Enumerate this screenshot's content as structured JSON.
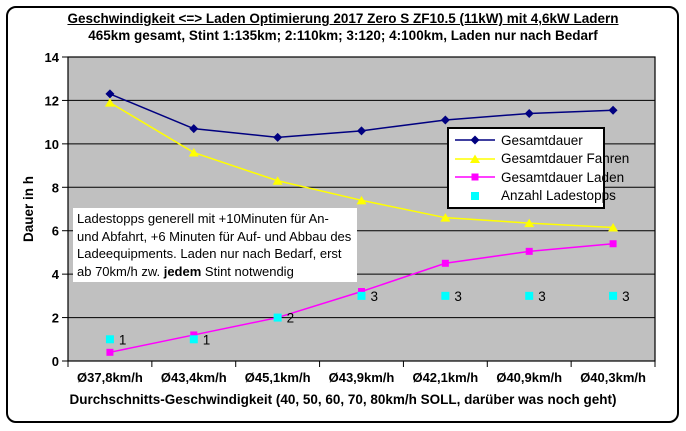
{
  "title": "Geschwindigkeit <=> Laden Optimierung 2017 Zero S ZF10.5 (11kW) mit 4,6kW Ladern",
  "subtitle": "465km gesamt, Stint 1:135km; 2:110km; 3:120; 4:100km, Laden nur nach Bedarf",
  "annotation": {
    "text_before": "Ladestopps generell mit +10Minuten für An- und Abfahrt, +6 Minuten für Auf- und Abbau des Ladeequipments. Laden nur nach Bedarf, erst ab 70km/h zw. ",
    "bold_word": "jedem",
    "text_after": " Stint notwendig"
  },
  "chart_data": {
    "type": "line",
    "title": "Geschwindigkeit <=> Laden Optimierung 2017 Zero S ZF10.5 (11kW) mit 4,6kW Ladern",
    "subtitle": "465km gesamt, Stint 1:135km; 2:110km; 3:120; 4:100km, Laden nur nach Bedarf",
    "categories": [
      "Ø37,8km/h",
      "Ø43,4km/h",
      "Ø45,1km/h",
      "Ø43,9km/h",
      "Ø42,1km/h",
      "Ø40,9km/h",
      "Ø40,3km/h"
    ],
    "series": [
      {
        "name": "Gesamtdauer",
        "color": "#000080",
        "marker": "diamond",
        "line": true,
        "values": [
          12.3,
          10.7,
          10.3,
          10.6,
          11.1,
          11.4,
          11.55
        ]
      },
      {
        "name": "Gesamtdauer Fahren",
        "color": "#FFFF00",
        "marker": "triangle",
        "line": true,
        "values": [
          11.9,
          9.6,
          8.3,
          7.4,
          6.6,
          6.35,
          6.15
        ]
      },
      {
        "name": "Gesamtdauer Laden",
        "color": "#FF00FF",
        "marker": "square",
        "line": true,
        "values": [
          0.4,
          1.2,
          2.0,
          3.2,
          4.5,
          5.05,
          5.4
        ]
      },
      {
        "name": "Anzahl Ladestopps",
        "color": "#00FFFF",
        "marker": "square",
        "line": false,
        "values": [
          1,
          1,
          2,
          3,
          3,
          3,
          3
        ],
        "data_labels": [
          "1",
          "1",
          "2",
          "3",
          "3",
          "3",
          "3"
        ]
      }
    ],
    "xlabel": "Durchschnitts-Geschwindigkeit (40, 50, 60, 70, 80km/h SOLL, darüber was noch geht)",
    "ylabel": "Dauer in h",
    "ylim": [
      0,
      14
    ],
    "yticks": [
      0,
      2,
      4,
      6,
      8,
      10,
      12,
      14
    ],
    "grid": true,
    "legend_position": "inside-right-upper",
    "plot_bg": "#C0C0C0",
    "axis_color": "#000000"
  }
}
